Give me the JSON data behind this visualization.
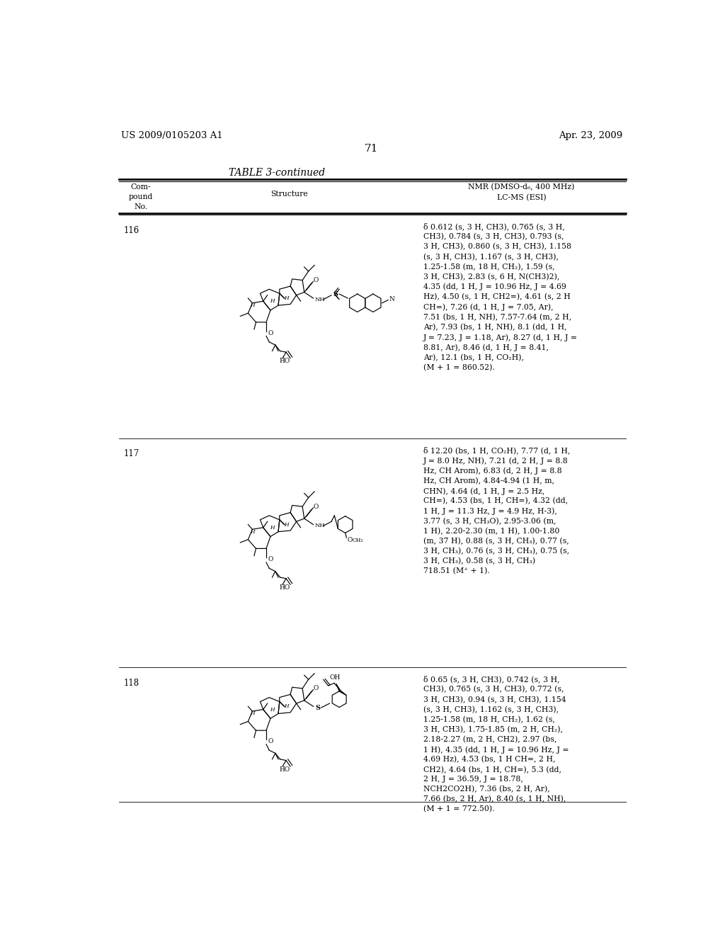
{
  "background_color": "#ffffff",
  "header_left": "US 2009/0105203 A1",
  "header_right": "Apr. 23, 2009",
  "page_number": "71",
  "table_title": "TABLE 3-continued",
  "nmr116": "δ 0.612 (s, 3 H, CH3), 0.765 (s, 3 H,\nCH3), 0.784 (s, 3 H, CH3), 0.793 (s,\n3 H, CH3), 0.860 (s, 3 H, CH3), 1.158\n(s, 3 H, CH3), 1.167 (s, 3 H, CH3),\n1.25-1.58 (m, 18 H, CH₂), 1.59 (s,\n3 H, CH3), 2.83 (s, 6 H, N(CH3)2),\n4.35 (dd, 1 H, J = 10.96 Hz, J = 4.69\nHz), 4.50 (s, 1 H, CH2=), 4.61 (s, 2 H\nCH=), 7.26 (d, 1 H, J = 7.05, Ar),\n7.51 (bs, 1 H, NH), 7.57-7.64 (m, 2 H,\nAr), 7.93 (bs, 1 H, NH), 8.1 (dd, 1 H,\nJ = 7.23, J = 1.18, Ar), 8.27 (d, 1 H, J =\n8.81, Ar), 8.46 (d, 1 H, J = 8.41,\nAr), 12.1 (bs, 1 H, CO₂H),\n(M + 1 = 860.52).",
  "nmr117": "δ 12.20 (bs, 1 H, CO₂H), 7.77 (d, 1 H,\nJ = 8.0 Hz, NH), 7.21 (d, 2 H, J = 8.8\nHz, CH Arom), 6.83 (d, 2 H, J = 8.8\nHz, CH Arom), 4.84-4.94 (1 H, m,\nCHN), 4.64 (d, 1 H, J = 2.5 Hz,\nCH=), 4.53 (bs, 1 H, CH=), 4.32 (dd,\n1 H, J = 11.3 Hz, J = 4.9 Hz, H-3),\n3.77 (s, 3 H, CH₃O), 2.95-3.06 (m,\n1 H), 2.20-2.30 (m, 1 H), 1.00-1.80\n(m, 37 H), 0.88 (s, 3 H, CH₃), 0.77 (s,\n3 H, CH₃), 0.76 (s, 3 H, CH₃), 0.75 (s,\n3 H, CH₃), 0.58 (s, 3 H, CH₃)\n718.51 (M⁺ + 1).",
  "nmr118": "δ 0.65 (s, 3 H, CH3), 0.742 (s, 3 H,\nCH3), 0.765 (s, 3 H, CH3), 0.772 (s,\n3 H, CH3), 0.94 (s, 3 H, CH3), 1.154\n(s, 3 H, CH3), 1.162 (s, 3 H, CH3),\n1.25-1.58 (m, 18 H, CH₂), 1.62 (s,\n3 H, CH3), 1.75-1.85 (m, 2 H, CH₂),\n2.18-2.27 (m, 2 H, CH2), 2.97 (bs,\n1 H), 4.35 (dd, 1 H, J = 10.96 Hz, J =\n4.69 Hz), 4.53 (bs, 1 H CH=, 2 H,\nCH2), 4.64 (bs, 1 H, CH=), 5.3 (dd,\n2 H, J = 36.59, J = 18.78,\nNCH2CO2H), 7.36 (bs, 2 H, Ar),\n7.66 (bs, 2 H, Ar), 8.40 (s, 1 H, NH),\n(M + 1 = 772.50)."
}
